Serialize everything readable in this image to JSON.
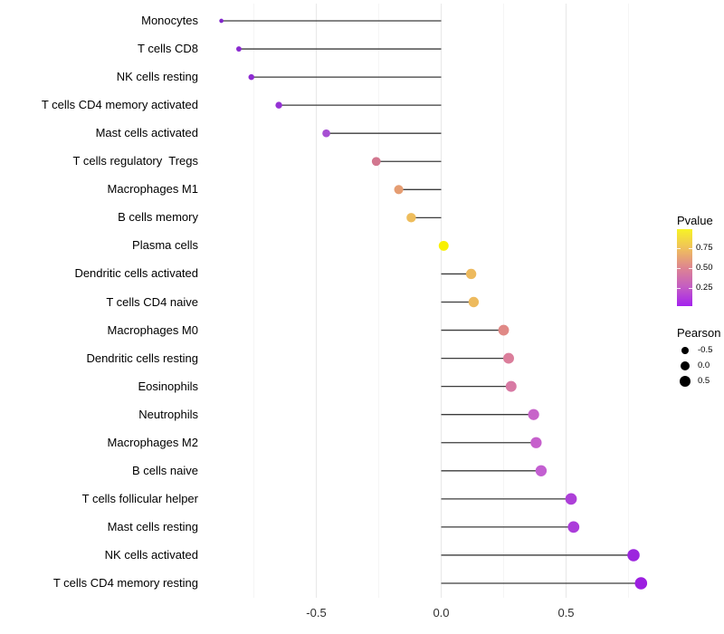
{
  "chart_data": {
    "type": "scatter",
    "variant": "lollipop",
    "title": "",
    "xlabel": "",
    "ylabel": "",
    "x_axis": {
      "ticks": [
        -0.5,
        0.0,
        0.5
      ],
      "tick_labels": [
        "-0.5",
        "0.0",
        "0.5"
      ],
      "minor_gridlines": [
        -0.75,
        -0.25,
        0.25,
        0.75
      ],
      "range_shown": [
        -0.95,
        0.885
      ]
    },
    "grid": "vertical-only",
    "legend_position": "right",
    "rows": [
      {
        "label": "Monocytes",
        "pearson": -0.88,
        "color": "#8227CB"
      },
      {
        "label": "T cells CD8",
        "pearson": -0.81,
        "color": "#8A2AD0"
      },
      {
        "label": "NK cells resting",
        "pearson": -0.76,
        "color": "#8E2BD2"
      },
      {
        "label": "T cells CD4 memory activated",
        "pearson": -0.65,
        "color": "#9532D4"
      },
      {
        "label": "Mast cells activated",
        "pearson": -0.46,
        "color": "#A74FD3"
      },
      {
        "label": "T cells regulatory  Tregs",
        "pearson": -0.26,
        "color": "#D2778F"
      },
      {
        "label": "Macrophages M1",
        "pearson": -0.17,
        "color": "#E59D72"
      },
      {
        "label": "B cells memory",
        "pearson": -0.12,
        "color": "#EEBD5C"
      },
      {
        "label": "Plasma cells",
        "pearson": 0.01,
        "color": "#F8F000"
      },
      {
        "label": "Dendritic cells activated",
        "pearson": 0.12,
        "color": "#EDBA5E"
      },
      {
        "label": "T cells CD4 naive",
        "pearson": 0.13,
        "color": "#EDBA5E"
      },
      {
        "label": "Macrophages M0",
        "pearson": 0.25,
        "color": "#E08986"
      },
      {
        "label": "Dendritic cells resting",
        "pearson": 0.27,
        "color": "#DB7E9B"
      },
      {
        "label": "Eosinophils",
        "pearson": 0.28,
        "color": "#D87AA4"
      },
      {
        "label": "Neutrophils",
        "pearson": 0.37,
        "color": "#C763C9"
      },
      {
        "label": "Macrophages M2",
        "pearson": 0.38,
        "color": "#C660CC"
      },
      {
        "label": "B cells naive",
        "pearson": 0.4,
        "color": "#C35FD1"
      },
      {
        "label": "T cells follicular helper",
        "pearson": 0.52,
        "color": "#AD40D8"
      },
      {
        "label": "Mast cells resting",
        "pearson": 0.53,
        "color": "#AB3DDA"
      },
      {
        "label": "NK cells activated",
        "pearson": 0.77,
        "color": "#9C25DE"
      },
      {
        "label": "T cells CD4 memory resting",
        "pearson": 0.8,
        "color": "#9C1FE0"
      }
    ],
    "size_scale": {
      "domain": [
        -0.9,
        0.8
      ],
      "diameter_range": [
        3.6,
        13.6
      ]
    }
  },
  "legend": {
    "pvalue": {
      "title": "Pvalue",
      "ticks": [
        {
          "label": "0.75",
          "value": 0.75
        },
        {
          "label": "0.50",
          "value": 0.5
        },
        {
          "label": "0.25",
          "value": 0.25
        }
      ],
      "scale_domain": [
        0.02,
        0.99
      ],
      "gradient_top_to_bottom": [
        "#F7F326",
        "#EFC05C",
        "#DE8590",
        "#C45DC3",
        "#A422EE"
      ]
    },
    "pearson": {
      "title": "Pearson",
      "items": [
        {
          "label": "-0.5",
          "diameter": 8
        },
        {
          "label": "0.0",
          "diameter": 10
        },
        {
          "label": "0.5",
          "diameter": 12
        }
      ],
      "dot_color": "#000000"
    }
  },
  "colors": {
    "stem": "#3C3C3C",
    "grid_major": "#E9E9E9",
    "grid_minor": "#F4F4F4",
    "axis_text": "#303030",
    "background": "#FFFFFF"
  }
}
